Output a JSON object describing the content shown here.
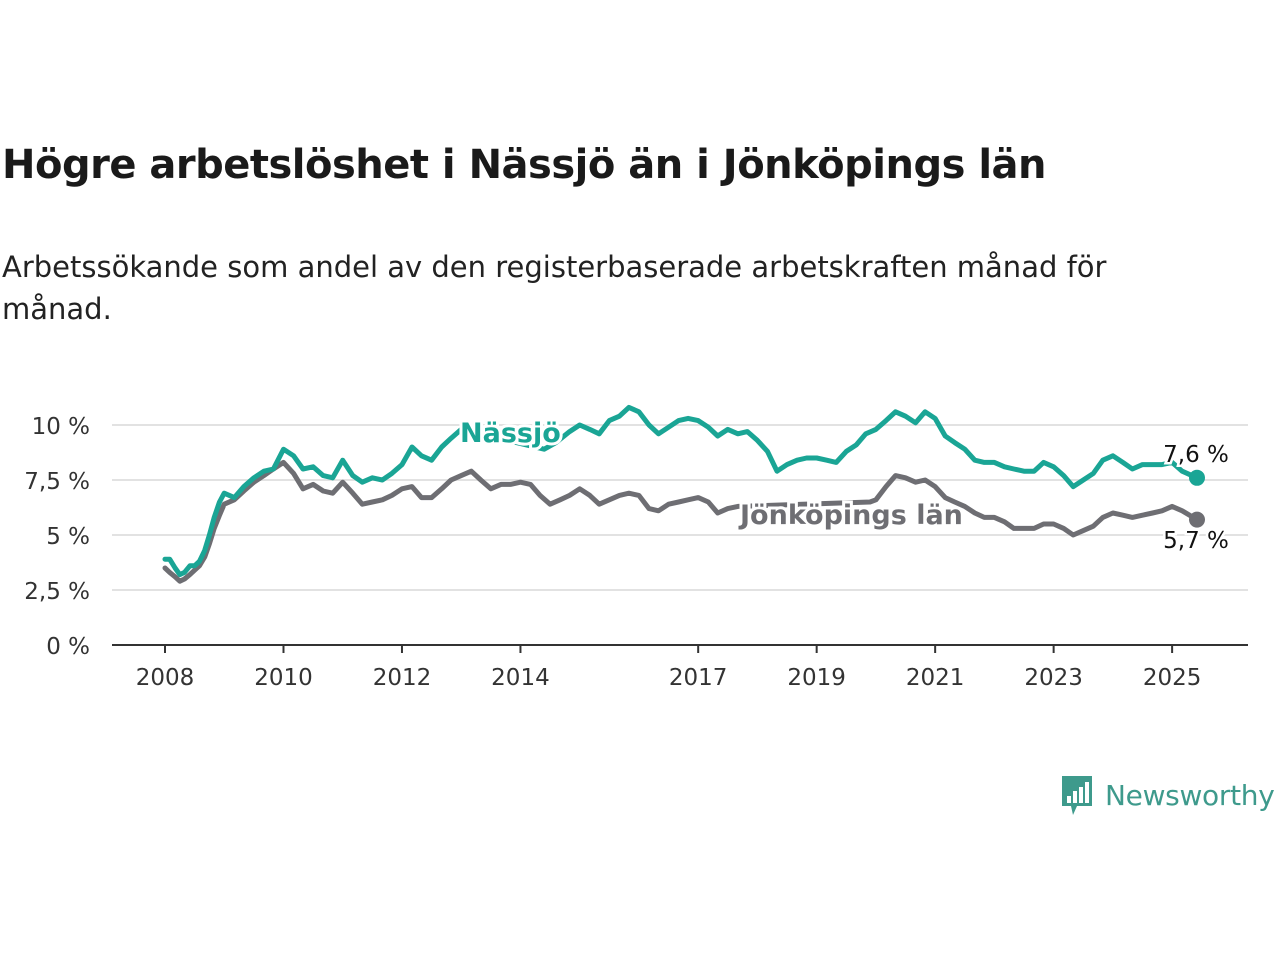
{
  "title": "Högre arbetslöshet i Nässjö än i Jönköpings län",
  "subtitle": "Arbetssökande som andel av den registerbaserade arbetskraften månad för månad.",
  "brand": "Newsworthy",
  "colors": {
    "nassjo": "#1aa595",
    "lan": "#6e6e73",
    "grid": "#e2e2e2",
    "axis": "#333333",
    "text": "#333333"
  },
  "chart_data": {
    "type": "line",
    "title": "Högre arbetslöshet i Nässjö än i Jönköpings län",
    "subtitle": "Arbetssökande som andel av den registerbaserade arbetskraften månad för månad.",
    "x_range": [
      2008.0,
      2025.42
    ],
    "ylim": [
      0,
      10
    ],
    "x_ticks": [
      2008,
      2010,
      2012,
      2014,
      2017,
      2019,
      2021,
      2023,
      2025
    ],
    "y_ticks": [
      {
        "value": 0,
        "label": "0 %"
      },
      {
        "value": 2.5,
        "label": "2,5 %"
      },
      {
        "value": 5,
        "label": "5 %"
      },
      {
        "value": 7.5,
        "label": "7,5 %"
      },
      {
        "value": 10,
        "label": "10 %"
      }
    ],
    "grid": true,
    "series": [
      {
        "name": "Nässjö",
        "color": "#1aa595",
        "end_label": "7,6 %",
        "points": [
          [
            2008.0,
            3.9
          ],
          [
            2008.08,
            3.9
          ],
          [
            2008.17,
            3.5
          ],
          [
            2008.25,
            3.2
          ],
          [
            2008.33,
            3.3
          ],
          [
            2008.42,
            3.6
          ],
          [
            2008.5,
            3.6
          ],
          [
            2008.58,
            3.8
          ],
          [
            2008.67,
            4.3
          ],
          [
            2008.75,
            5.0
          ],
          [
            2008.83,
            5.8
          ],
          [
            2008.92,
            6.5
          ],
          [
            2009.0,
            6.9
          ],
          [
            2009.17,
            6.7
          ],
          [
            2009.33,
            7.2
          ],
          [
            2009.5,
            7.6
          ],
          [
            2009.67,
            7.9
          ],
          [
            2009.83,
            8.0
          ],
          [
            2010.0,
            8.9
          ],
          [
            2010.17,
            8.6
          ],
          [
            2010.33,
            8.0
          ],
          [
            2010.5,
            8.1
          ],
          [
            2010.67,
            7.7
          ],
          [
            2010.83,
            7.6
          ],
          [
            2011.0,
            8.4
          ],
          [
            2011.17,
            7.7
          ],
          [
            2011.33,
            7.4
          ],
          [
            2011.5,
            7.6
          ],
          [
            2011.67,
            7.5
          ],
          [
            2011.83,
            7.8
          ],
          [
            2012.0,
            8.2
          ],
          [
            2012.17,
            9.0
          ],
          [
            2012.33,
            8.6
          ],
          [
            2012.5,
            8.4
          ],
          [
            2012.67,
            9.0
          ],
          [
            2012.83,
            9.4
          ],
          [
            2013.0,
            9.8
          ],
          [
            2014.4,
            8.9
          ],
          [
            2014.6,
            9.2
          ],
          [
            2014.83,
            9.7
          ],
          [
            2015.0,
            10.0
          ],
          [
            2015.17,
            9.8
          ],
          [
            2015.33,
            9.6
          ],
          [
            2015.5,
            10.2
          ],
          [
            2015.67,
            10.4
          ],
          [
            2015.83,
            10.8
          ],
          [
            2016.0,
            10.6
          ],
          [
            2016.17,
            10.0
          ],
          [
            2016.33,
            9.6
          ],
          [
            2016.5,
            9.9
          ],
          [
            2016.67,
            10.2
          ],
          [
            2016.83,
            10.3
          ],
          [
            2017.0,
            10.2
          ],
          [
            2017.17,
            9.9
          ],
          [
            2017.33,
            9.5
          ],
          [
            2017.5,
            9.8
          ],
          [
            2017.67,
            9.6
          ],
          [
            2017.83,
            9.7
          ],
          [
            2018.0,
            9.3
          ],
          [
            2018.17,
            8.8
          ],
          [
            2018.33,
            7.9
          ],
          [
            2018.5,
            8.2
          ],
          [
            2018.67,
            8.4
          ],
          [
            2018.83,
            8.5
          ],
          [
            2019.0,
            8.5
          ],
          [
            2019.17,
            8.4
          ],
          [
            2019.33,
            8.3
          ],
          [
            2019.5,
            8.8
          ],
          [
            2019.67,
            9.1
          ],
          [
            2019.83,
            9.6
          ],
          [
            2020.0,
            9.8
          ],
          [
            2020.17,
            10.2
          ],
          [
            2020.33,
            10.6
          ],
          [
            2020.5,
            10.4
          ],
          [
            2020.67,
            10.1
          ],
          [
            2020.83,
            10.6
          ],
          [
            2021.0,
            10.3
          ],
          [
            2021.17,
            9.5
          ],
          [
            2021.33,
            9.2
          ],
          [
            2021.5,
            8.9
          ],
          [
            2021.67,
            8.4
          ],
          [
            2021.83,
            8.3
          ],
          [
            2022.0,
            8.3
          ],
          [
            2022.17,
            8.1
          ],
          [
            2022.33,
            8.0
          ],
          [
            2022.5,
            7.9
          ],
          [
            2022.67,
            7.9
          ],
          [
            2022.83,
            8.3
          ],
          [
            2023.0,
            8.1
          ],
          [
            2023.17,
            7.7
          ],
          [
            2023.33,
            7.2
          ],
          [
            2023.5,
            7.5
          ],
          [
            2023.67,
            7.8
          ],
          [
            2023.83,
            8.4
          ],
          [
            2024.0,
            8.6
          ],
          [
            2024.17,
            8.3
          ],
          [
            2024.33,
            8.0
          ],
          [
            2024.5,
            8.2
          ],
          [
            2024.67,
            8.2
          ],
          [
            2024.83,
            8.2
          ],
          [
            2025.0,
            8.3
          ],
          [
            2025.17,
            7.9
          ],
          [
            2025.42,
            7.6
          ]
        ]
      },
      {
        "name": "Jönköpings län",
        "color": "#6e6e73",
        "end_label": "5,7 %",
        "points": [
          [
            2008.0,
            3.5
          ],
          [
            2008.08,
            3.3
          ],
          [
            2008.17,
            3.1
          ],
          [
            2008.25,
            2.9
          ],
          [
            2008.33,
            3.0
          ],
          [
            2008.42,
            3.2
          ],
          [
            2008.5,
            3.4
          ],
          [
            2008.58,
            3.6
          ],
          [
            2008.67,
            4.0
          ],
          [
            2008.75,
            4.6
          ],
          [
            2008.83,
            5.3
          ],
          [
            2008.92,
            5.9
          ],
          [
            2009.0,
            6.4
          ],
          [
            2009.17,
            6.6
          ],
          [
            2009.33,
            7.0
          ],
          [
            2009.5,
            7.4
          ],
          [
            2009.67,
            7.7
          ],
          [
            2009.83,
            8.0
          ],
          [
            2010.0,
            8.3
          ],
          [
            2010.17,
            7.8
          ],
          [
            2010.33,
            7.1
          ],
          [
            2010.5,
            7.3
          ],
          [
            2010.67,
            7.0
          ],
          [
            2010.83,
            6.9
          ],
          [
            2011.0,
            7.4
          ],
          [
            2011.17,
            6.9
          ],
          [
            2011.33,
            6.4
          ],
          [
            2011.5,
            6.5
          ],
          [
            2011.67,
            6.6
          ],
          [
            2011.83,
            6.8
          ],
          [
            2012.0,
            7.1
          ],
          [
            2012.17,
            7.2
          ],
          [
            2012.33,
            6.7
          ],
          [
            2012.5,
            6.7
          ],
          [
            2012.67,
            7.1
          ],
          [
            2012.83,
            7.5
          ],
          [
            2013.0,
            7.7
          ],
          [
            2013.17,
            7.9
          ],
          [
            2013.33,
            7.5
          ],
          [
            2013.5,
            7.1
          ],
          [
            2013.67,
            7.3
          ],
          [
            2013.83,
            7.3
          ],
          [
            2014.0,
            7.4
          ],
          [
            2014.17,
            7.3
          ],
          [
            2014.33,
            6.8
          ],
          [
            2014.5,
            6.4
          ],
          [
            2014.67,
            6.6
          ],
          [
            2014.83,
            6.8
          ],
          [
            2015.0,
            7.1
          ],
          [
            2015.17,
            6.8
          ],
          [
            2015.33,
            6.4
          ],
          [
            2015.5,
            6.6
          ],
          [
            2015.67,
            6.8
          ],
          [
            2015.83,
            6.9
          ],
          [
            2016.0,
            6.8
          ],
          [
            2016.17,
            6.2
          ],
          [
            2016.33,
            6.1
          ],
          [
            2016.5,
            6.4
          ],
          [
            2016.67,
            6.5
          ],
          [
            2016.83,
            6.6
          ],
          [
            2017.0,
            6.7
          ],
          [
            2017.17,
            6.5
          ],
          [
            2017.33,
            6.0
          ],
          [
            2017.5,
            6.2
          ],
          [
            2017.67,
            6.3
          ],
          [
            2019.9,
            6.5
          ],
          [
            2020.0,
            6.6
          ],
          [
            2020.17,
            7.2
          ],
          [
            2020.33,
            7.7
          ],
          [
            2020.5,
            7.6
          ],
          [
            2020.67,
            7.4
          ],
          [
            2020.83,
            7.5
          ],
          [
            2021.0,
            7.2
          ],
          [
            2021.17,
            6.7
          ],
          [
            2021.33,
            6.5
          ],
          [
            2021.5,
            6.3
          ],
          [
            2021.67,
            6.0
          ],
          [
            2021.83,
            5.8
          ],
          [
            2022.0,
            5.8
          ],
          [
            2022.17,
            5.6
          ],
          [
            2022.33,
            5.3
          ],
          [
            2022.5,
            5.3
          ],
          [
            2022.67,
            5.3
          ],
          [
            2022.83,
            5.5
          ],
          [
            2023.0,
            5.5
          ],
          [
            2023.17,
            5.3
          ],
          [
            2023.33,
            5.0
          ],
          [
            2023.5,
            5.2
          ],
          [
            2023.67,
            5.4
          ],
          [
            2023.83,
            5.8
          ],
          [
            2024.0,
            6.0
          ],
          [
            2024.17,
            5.9
          ],
          [
            2024.33,
            5.8
          ],
          [
            2024.5,
            5.9
          ],
          [
            2024.67,
            6.0
          ],
          [
            2024.83,
            6.1
          ],
          [
            2025.0,
            6.3
          ],
          [
            2025.17,
            6.1
          ],
          [
            2025.42,
            5.7
          ]
        ]
      }
    ]
  }
}
